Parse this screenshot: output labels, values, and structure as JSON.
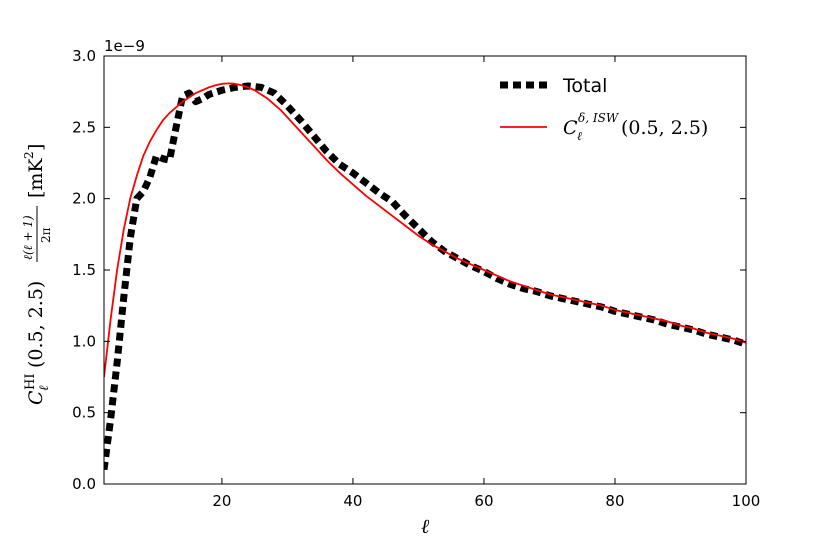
{
  "chart_data": {
    "type": "line",
    "title": "",
    "xlabel": "ℓ",
    "ylabel": {
      "prefix": "C",
      "sup": "HI",
      "sub": "ℓ",
      "args": "(0.5, 2.5)",
      "frac_num": "ℓ(ℓ + 1)",
      "frac_den": "2π",
      "unit": "[mK",
      "unit_exp": "2",
      "unit_close": "]"
    },
    "y_offset_text": "1e−9",
    "xlim": [
      2,
      100
    ],
    "ylim": [
      0.0,
      3.0
    ],
    "x_ticks": [
      20,
      40,
      60,
      80,
      100
    ],
    "x_tick_labels": [
      "20",
      "40",
      "60",
      "80",
      "100"
    ],
    "y_ticks": [
      0.0,
      0.5,
      1.0,
      1.5,
      2.0,
      2.5,
      3.0
    ],
    "y_tick_labels": [
      "0.0",
      "0.5",
      "1.0",
      "1.5",
      "2.0",
      "2.5",
      "3.0"
    ],
    "grid": false,
    "legend_position": "top-right",
    "series": [
      {
        "name": "Total",
        "color": "#000000",
        "style": "dashed",
        "x": [
          2,
          3,
          4,
          5,
          6,
          7,
          8,
          9,
          10,
          11,
          12,
          13,
          14,
          15,
          16,
          17,
          18,
          20,
          22,
          24,
          26,
          28,
          30,
          32,
          34,
          36,
          38,
          40,
          42,
          44,
          46,
          48,
          50,
          52,
          54,
          56,
          58,
          60,
          62,
          64,
          66,
          68,
          70,
          72,
          74,
          76,
          78,
          80,
          82,
          84,
          86,
          88,
          90,
          92,
          94,
          96,
          98,
          100
        ],
        "y": [
          0.1,
          0.45,
          0.85,
          1.3,
          1.72,
          2.0,
          2.05,
          2.15,
          2.3,
          2.28,
          2.27,
          2.5,
          2.72,
          2.74,
          2.68,
          2.7,
          2.73,
          2.76,
          2.78,
          2.79,
          2.78,
          2.74,
          2.65,
          2.55,
          2.44,
          2.33,
          2.24,
          2.18,
          2.11,
          2.04,
          1.98,
          1.88,
          1.79,
          1.7,
          1.63,
          1.58,
          1.53,
          1.49,
          1.44,
          1.4,
          1.37,
          1.35,
          1.32,
          1.3,
          1.28,
          1.26,
          1.24,
          1.21,
          1.19,
          1.17,
          1.15,
          1.12,
          1.1,
          1.08,
          1.05,
          1.03,
          1.01,
          0.98
        ]
      },
      {
        "name": "C_ℓ^{δ, ISW}(0.5, 2.5)",
        "legend": {
          "base": "C",
          "sup": "δ, ISW",
          "sub": "ℓ",
          "args": "(0.5, 2.5)"
        },
        "color": "#ff0000",
        "style": "solid",
        "x": [
          2,
          3,
          4,
          5,
          6,
          7,
          8,
          9,
          10,
          11,
          12,
          13,
          14,
          15,
          16,
          17,
          18,
          19,
          20,
          21,
          22,
          23,
          24,
          25,
          26,
          27,
          28,
          29,
          30,
          32,
          34,
          36,
          38,
          40,
          42,
          44,
          46,
          48,
          50,
          52,
          54,
          56,
          58,
          60,
          62,
          64,
          66,
          68,
          70,
          72,
          74,
          76,
          78,
          80,
          82,
          84,
          86,
          88,
          90,
          92,
          94,
          96,
          98,
          100
        ],
        "y": [
          0.75,
          1.15,
          1.5,
          1.78,
          2.0,
          2.16,
          2.3,
          2.4,
          2.48,
          2.55,
          2.6,
          2.64,
          2.68,
          2.71,
          2.74,
          2.76,
          2.78,
          2.795,
          2.805,
          2.808,
          2.805,
          2.795,
          2.78,
          2.76,
          2.73,
          2.7,
          2.66,
          2.62,
          2.57,
          2.47,
          2.37,
          2.27,
          2.18,
          2.1,
          2.02,
          1.95,
          1.88,
          1.81,
          1.74,
          1.68,
          1.63,
          1.58,
          1.54,
          1.5,
          1.46,
          1.42,
          1.39,
          1.36,
          1.33,
          1.31,
          1.29,
          1.27,
          1.25,
          1.22,
          1.2,
          1.18,
          1.16,
          1.14,
          1.11,
          1.09,
          1.06,
          1.04,
          1.02,
          0.99
        ]
      }
    ]
  }
}
